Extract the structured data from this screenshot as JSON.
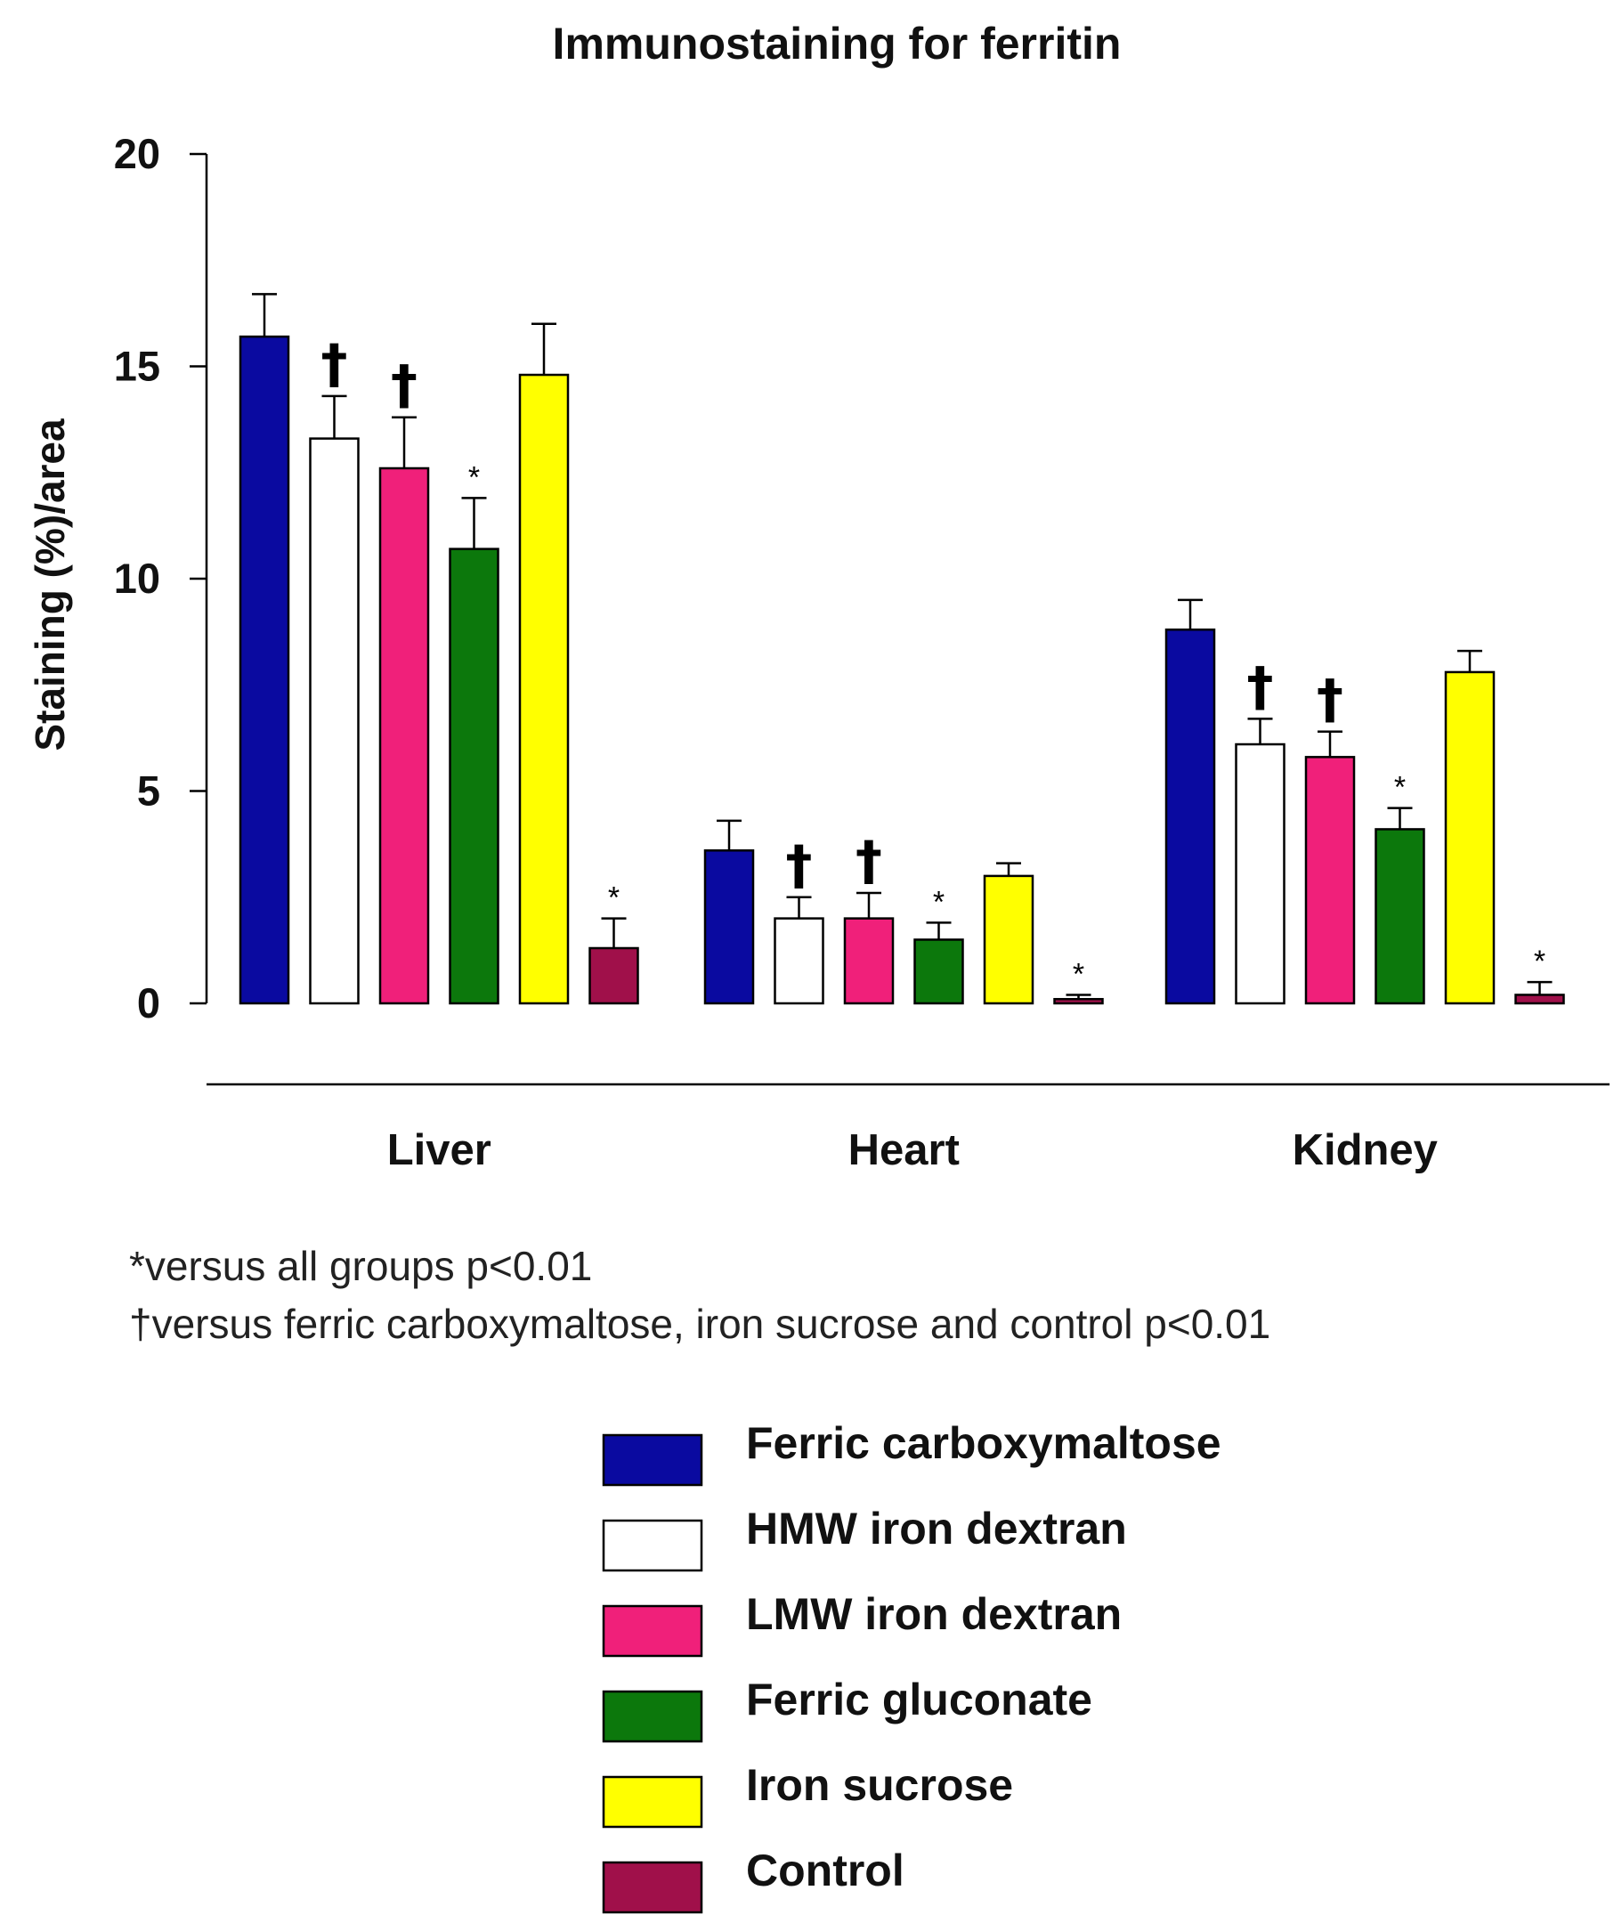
{
  "chart_data": {
    "type": "bar",
    "title": "Immunostaining for ferritin",
    "ylabel": "Staining (%)/area",
    "xlabel": "",
    "ylim": [
      0,
      20
    ],
    "yticks": [
      0,
      5,
      10,
      15,
      20
    ],
    "categories": [
      "Liver",
      "Heart",
      "Kidney"
    ],
    "series": [
      {
        "name": "Ferric carboxymaltose",
        "color": "#0a0aa0",
        "values": [
          15.7,
          3.6,
          8.8
        ],
        "errors": [
          1.0,
          0.7,
          0.7
        ],
        "marks": [
          "",
          "",
          ""
        ]
      },
      {
        "name": "HMW iron dextran",
        "color": "#ffffff",
        "values": [
          13.3,
          2.0,
          6.1
        ],
        "errors": [
          1.0,
          0.5,
          0.6
        ],
        "marks": [
          "†",
          "†",
          "†"
        ]
      },
      {
        "name": "LMW iron dextran",
        "color": "#f0207a",
        "values": [
          12.6,
          2.0,
          5.8
        ],
        "errors": [
          1.2,
          0.6,
          0.6
        ],
        "marks": [
          "†",
          "†",
          "†"
        ]
      },
      {
        "name": "Ferric gluconate",
        "color": "#0c780c",
        "values": [
          10.7,
          1.5,
          4.1
        ],
        "errors": [
          1.2,
          0.4,
          0.5
        ],
        "marks": [
          "*",
          "*",
          "*"
        ]
      },
      {
        "name": "Iron sucrose",
        "color": "#ffff00",
        "values": [
          14.8,
          3.0,
          7.8
        ],
        "errors": [
          1.2,
          0.3,
          0.5
        ],
        "marks": [
          "",
          "",
          ""
        ]
      },
      {
        "name": "Control",
        "color": "#a0104a",
        "values": [
          1.3,
          0.1,
          0.2
        ],
        "errors": [
          0.7,
          0.1,
          0.3
        ],
        "marks": [
          "*",
          "*",
          "*"
        ]
      }
    ]
  },
  "footnotes": [
    "*versus all groups p<0.01",
    "†versus ferric carboxymaltose, iron sucrose and control p<0.01"
  ]
}
